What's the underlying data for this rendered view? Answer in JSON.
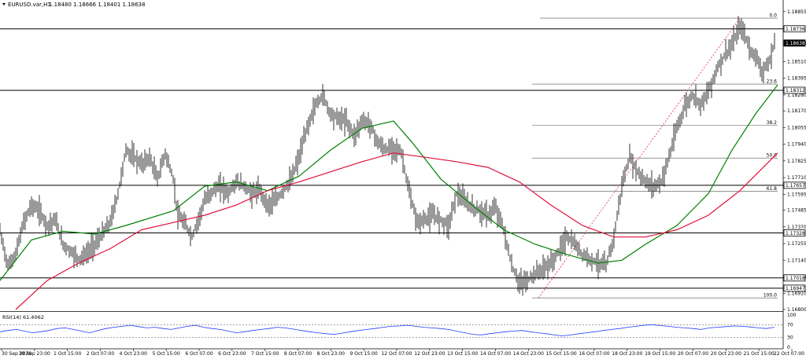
{
  "header": {
    "symbol": "EURUSD.var,H1",
    "ohlc": "1.18480 1.18666 1.18401 1.18638"
  },
  "rsi_label": "RSI(14) 61.4062",
  "chart_data": [
    {
      "type": "candlestick",
      "symbol": "EURUSD.var",
      "timeframe": "H1",
      "ylim": [
        1.168,
        1.1887
      ],
      "y_ticks": [
        "1.18855",
        "1.18638",
        "1.18510",
        "1.18395",
        "1.18280",
        "1.18170",
        "1.18055",
        "1.17940",
        "1.17825",
        "1.17710",
        "1.17595",
        "1.17485",
        "1.17370",
        "1.17255",
        "1.17140",
        "1.17025",
        "1.16910",
        "1.16800"
      ],
      "x_ticks": [
        "30 Sep 2020",
        "30 Sep 23:00",
        "1 Oct 15:00",
        "2 Oct 07:00",
        "4 Oct 23:00",
        "5 Oct 15:00",
        "6 Oct 07:00",
        "6 Oct 23:00",
        "7 Oct 15:00",
        "8 Oct 07:00",
        "8 Oct 23:00",
        "9 Oct 15:00",
        "12 Oct 07:00",
        "12 Oct 23:00",
        "13 Oct 15:00",
        "14 Oct 07:00",
        "14 Oct 23:00",
        "15 Oct 15:00",
        "16 Oct 07:00",
        "18 Oct 23:00",
        "19 Oct 15:00",
        "20 Oct 07:00",
        "20 Oct 23:00",
        "21 Oct 15:00",
        "22 Oct 07:00"
      ],
      "current_price": "1.18638",
      "horizontal_levels": [
        {
          "value": 1.18736,
          "label": "1.18736"
        },
        {
          "value": 1.18312,
          "label": "1.18312"
        },
        {
          "value": 1.17657,
          "label": "1.17657"
        },
        {
          "value": 1.17328,
          "label": "1.17328"
        },
        {
          "value": 1.17018,
          "label": "1.17018"
        },
        {
          "value": 1.16947,
          "label": "1.16947"
        }
      ],
      "fibonacci_levels": [
        {
          "label": "0.0",
          "value": 1.1881
        },
        {
          "label": "23.6",
          "value": 1.18355
        },
        {
          "label": "38.2",
          "value": 1.1807
        },
        {
          "label": "50.0",
          "value": 1.17845
        },
        {
          "label": "61.8",
          "value": 1.17615
        },
        {
          "label": "100.0",
          "value": 1.1688
        }
      ],
      "close_path": [
        {
          "i": 0,
          "y": 1.1734
        },
        {
          "i": 5,
          "y": 1.171
        },
        {
          "i": 10,
          "y": 1.1718
        },
        {
          "i": 15,
          "y": 1.174
        },
        {
          "i": 20,
          "y": 1.1752
        },
        {
          "i": 25,
          "y": 1.1748
        },
        {
          "i": 30,
          "y": 1.1738
        },
        {
          "i": 35,
          "y": 1.1742
        },
        {
          "i": 40,
          "y": 1.1725
        },
        {
          "i": 45,
          "y": 1.172
        },
        {
          "i": 50,
          "y": 1.1715
        },
        {
          "i": 55,
          "y": 1.1718
        },
        {
          "i": 60,
          "y": 1.1725
        },
        {
          "i": 65,
          "y": 1.1732
        },
        {
          "i": 70,
          "y": 1.174
        },
        {
          "i": 75,
          "y": 1.176
        },
        {
          "i": 80,
          "y": 1.179
        },
        {
          "i": 85,
          "y": 1.1785
        },
        {
          "i": 90,
          "y": 1.178
        },
        {
          "i": 95,
          "y": 1.1785
        },
        {
          "i": 100,
          "y": 1.177
        },
        {
          "i": 105,
          "y": 1.1788
        },
        {
          "i": 110,
          "y": 1.177
        },
        {
          "i": 113,
          "y": 1.1745
        },
        {
          "i": 118,
          "y": 1.1738
        },
        {
          "i": 122,
          "y": 1.173
        },
        {
          "i": 126,
          "y": 1.1742
        },
        {
          "i": 130,
          "y": 1.1755
        },
        {
          "i": 135,
          "y": 1.1762
        },
        {
          "i": 140,
          "y": 1.1765
        },
        {
          "i": 145,
          "y": 1.176
        },
        {
          "i": 150,
          "y": 1.1768
        },
        {
          "i": 155,
          "y": 1.1765
        },
        {
          "i": 160,
          "y": 1.176
        },
        {
          "i": 165,
          "y": 1.1762
        },
        {
          "i": 170,
          "y": 1.1752
        },
        {
          "i": 175,
          "y": 1.1755
        },
        {
          "i": 180,
          "y": 1.1762
        },
        {
          "i": 185,
          "y": 1.177
        },
        {
          "i": 190,
          "y": 1.1785
        },
        {
          "i": 195,
          "y": 1.1805
        },
        {
          "i": 200,
          "y": 1.182
        },
        {
          "i": 205,
          "y": 1.1828
        },
        {
          "i": 210,
          "y": 1.1815
        },
        {
          "i": 215,
          "y": 1.1812
        },
        {
          "i": 220,
          "y": 1.181
        },
        {
          "i": 225,
          "y": 1.18
        },
        {
          "i": 230,
          "y": 1.181
        },
        {
          "i": 235,
          "y": 1.1808
        },
        {
          "i": 240,
          "y": 1.1795
        },
        {
          "i": 245,
          "y": 1.179
        },
        {
          "i": 250,
          "y": 1.1792
        },
        {
          "i": 255,
          "y": 1.1788
        },
        {
          "i": 260,
          "y": 1.176
        },
        {
          "i": 265,
          "y": 1.174
        },
        {
          "i": 270,
          "y": 1.1742
        },
        {
          "i": 275,
          "y": 1.1745
        },
        {
          "i": 280,
          "y": 1.1742
        },
        {
          "i": 285,
          "y": 1.1738
        },
        {
          "i": 290,
          "y": 1.176
        },
        {
          "i": 295,
          "y": 1.1755
        },
        {
          "i": 300,
          "y": 1.175
        },
        {
          "i": 305,
          "y": 1.1748
        },
        {
          "i": 310,
          "y": 1.1745
        },
        {
          "i": 315,
          "y": 1.175
        },
        {
          "i": 320,
          "y": 1.1735
        },
        {
          "i": 325,
          "y": 1.171
        },
        {
          "i": 330,
          "y": 1.1698
        },
        {
          "i": 335,
          "y": 1.17
        },
        {
          "i": 340,
          "y": 1.1705
        },
        {
          "i": 345,
          "y": 1.1708
        },
        {
          "i": 350,
          "y": 1.1712
        },
        {
          "i": 355,
          "y": 1.172
        },
        {
          "i": 360,
          "y": 1.173
        },
        {
          "i": 365,
          "y": 1.1725
        },
        {
          "i": 370,
          "y": 1.1718
        },
        {
          "i": 375,
          "y": 1.1715
        },
        {
          "i": 380,
          "y": 1.1712
        },
        {
          "i": 385,
          "y": 1.171
        },
        {
          "i": 390,
          "y": 1.173
        },
        {
          "i": 395,
          "y": 1.1765
        },
        {
          "i": 400,
          "y": 1.1785
        },
        {
          "i": 405,
          "y": 1.1775
        },
        {
          "i": 410,
          "y": 1.1768
        },
        {
          "i": 415,
          "y": 1.1765
        },
        {
          "i": 420,
          "y": 1.1768
        },
        {
          "i": 425,
          "y": 1.1785
        },
        {
          "i": 430,
          "y": 1.1805
        },
        {
          "i": 435,
          "y": 1.182
        },
        {
          "i": 440,
          "y": 1.1828
        },
        {
          "i": 445,
          "y": 1.1822
        },
        {
          "i": 450,
          "y": 1.183
        },
        {
          "i": 455,
          "y": 1.1845
        },
        {
          "i": 460,
          "y": 1.1855
        },
        {
          "i": 465,
          "y": 1.1862
        },
        {
          "i": 470,
          "y": 1.1875
        },
        {
          "i": 473,
          "y": 1.187
        },
        {
          "i": 476,
          "y": 1.186
        },
        {
          "i": 480,
          "y": 1.1855
        },
        {
          "i": 484,
          "y": 1.1845
        },
        {
          "i": 488,
          "y": 1.1848
        },
        {
          "i": 492,
          "y": 1.18638
        }
      ],
      "moving_averages": [
        {
          "name": "green",
          "color": "#008000",
          "points": [
            {
              "i": 0,
              "y": 1.17
            },
            {
              "i": 20,
              "y": 1.1728
            },
            {
              "i": 40,
              "y": 1.1734
            },
            {
              "i": 60,
              "y": 1.1732
            },
            {
              "i": 80,
              "y": 1.1738
            },
            {
              "i": 110,
              "y": 1.1748
            },
            {
              "i": 130,
              "y": 1.1765
            },
            {
              "i": 150,
              "y": 1.1768
            },
            {
              "i": 170,
              "y": 1.1762
            },
            {
              "i": 190,
              "y": 1.1772
            },
            {
              "i": 210,
              "y": 1.179
            },
            {
              "i": 230,
              "y": 1.1805
            },
            {
              "i": 250,
              "y": 1.181
            },
            {
              "i": 262,
              "y": 1.1795
            },
            {
              "i": 280,
              "y": 1.177
            },
            {
              "i": 300,
              "y": 1.1752
            },
            {
              "i": 320,
              "y": 1.1735
            },
            {
              "i": 340,
              "y": 1.1725
            },
            {
              "i": 360,
              "y": 1.1718
            },
            {
              "i": 380,
              "y": 1.1712
            },
            {
              "i": 395,
              "y": 1.1714
            },
            {
              "i": 410,
              "y": 1.1725
            },
            {
              "i": 430,
              "y": 1.1738
            },
            {
              "i": 450,
              "y": 1.176
            },
            {
              "i": 465,
              "y": 1.179
            },
            {
              "i": 480,
              "y": 1.1815
            },
            {
              "i": 494,
              "y": 1.1835
            }
          ]
        },
        {
          "name": "red",
          "color": "#e0103a",
          "points": [
            {
              "i": 10,
              "y": 1.168
            },
            {
              "i": 30,
              "y": 1.17
            },
            {
              "i": 50,
              "y": 1.1712
            },
            {
              "i": 70,
              "y": 1.1722
            },
            {
              "i": 90,
              "y": 1.1735
            },
            {
              "i": 110,
              "y": 1.174
            },
            {
              "i": 130,
              "y": 1.1745
            },
            {
              "i": 150,
              "y": 1.1752
            },
            {
              "i": 170,
              "y": 1.1762
            },
            {
              "i": 190,
              "y": 1.1768
            },
            {
              "i": 210,
              "y": 1.1775
            },
            {
              "i": 230,
              "y": 1.1782
            },
            {
              "i": 250,
              "y": 1.1788
            },
            {
              "i": 270,
              "y": 1.1785
            },
            {
              "i": 290,
              "y": 1.1782
            },
            {
              "i": 310,
              "y": 1.1778
            },
            {
              "i": 330,
              "y": 1.1768
            },
            {
              "i": 350,
              "y": 1.1752
            },
            {
              "i": 370,
              "y": 1.1738
            },
            {
              "i": 390,
              "y": 1.173
            },
            {
              "i": 410,
              "y": 1.173
            },
            {
              "i": 430,
              "y": 1.1735
            },
            {
              "i": 450,
              "y": 1.1745
            },
            {
              "i": 470,
              "y": 1.1762
            },
            {
              "i": 494,
              "y": 1.1788
            }
          ]
        }
      ]
    },
    {
      "type": "line",
      "title": "RSI(14) 61.4062",
      "ylim": [
        0,
        100
      ],
      "y_ticks": [
        "100",
        "70",
        "30",
        "0"
      ],
      "levels": [
        70,
        30
      ],
      "values": [
        48,
        52,
        55,
        50,
        45,
        48,
        52,
        58,
        60,
        55,
        50,
        45,
        52,
        58,
        62,
        65,
        68,
        64,
        60,
        62,
        58,
        55,
        60,
        65,
        68,
        62,
        58,
        55,
        50,
        45,
        48,
        52,
        55,
        58,
        62,
        60,
        56,
        52,
        48,
        45,
        42,
        40,
        44,
        48,
        52,
        55,
        58,
        62,
        65,
        66,
        68,
        65,
        62,
        60,
        58,
        55,
        50,
        45,
        40,
        38,
        42,
        45,
        48,
        50,
        52,
        48,
        45,
        42,
        38,
        35,
        38,
        42,
        45,
        48,
        52,
        55,
        58,
        62,
        65,
        68,
        70,
        67,
        65,
        62,
        60,
        58,
        55,
        60,
        62,
        64,
        66,
        65,
        63,
        60,
        58,
        62
      ]
    }
  ]
}
